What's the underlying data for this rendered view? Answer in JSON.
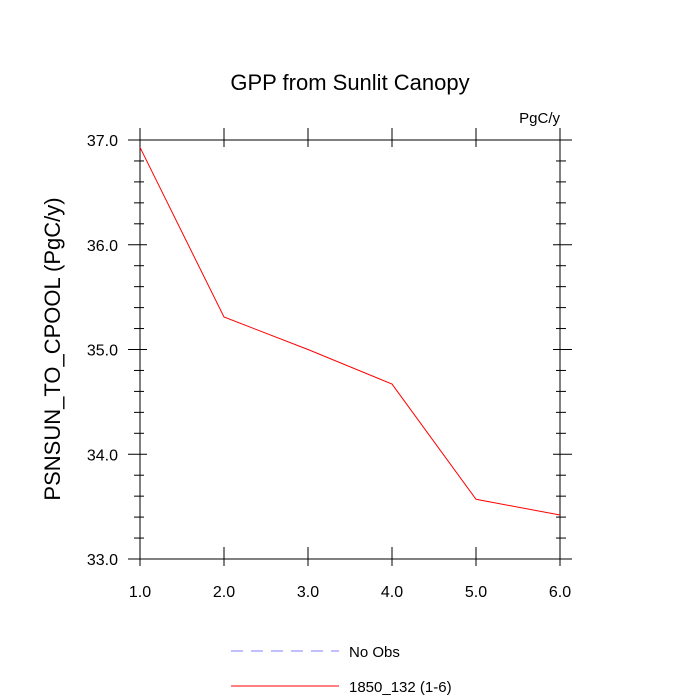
{
  "chart_data": {
    "type": "line",
    "title": "GPP from Sunlit Canopy",
    "units_label": "PgC/y",
    "xlabel": "",
    "ylabel": "PSNSUN_TO_CPOOL  (PgC/y)",
    "xlim": [
      1.0,
      6.0
    ],
    "ylim": [
      33.0,
      37.0
    ],
    "x_ticks": [
      1.0,
      2.0,
      3.0,
      4.0,
      5.0,
      6.0
    ],
    "x_tick_labels": [
      "1.0",
      "2.0",
      "3.0",
      "4.0",
      "5.0",
      "6.0"
    ],
    "y_ticks": [
      33.0,
      34.0,
      35.0,
      36.0,
      37.0
    ],
    "y_tick_labels": [
      "33.0",
      "34.0",
      "35.0",
      "36.0",
      "37.0"
    ],
    "grid": false,
    "legend_position": "bottom-center",
    "series": [
      {
        "name": "No Obs",
        "color": "#8080ff",
        "dash": "dashed",
        "x": [],
        "values": []
      },
      {
        "name": "1850_132 (1-6)",
        "color": "#ff0000",
        "dash": "solid",
        "x": [
          1.0,
          2.0,
          3.0,
          4.0,
          5.0,
          6.0
        ],
        "values": [
          36.93,
          35.31,
          35.0,
          34.67,
          33.57,
          33.42
        ]
      }
    ]
  }
}
